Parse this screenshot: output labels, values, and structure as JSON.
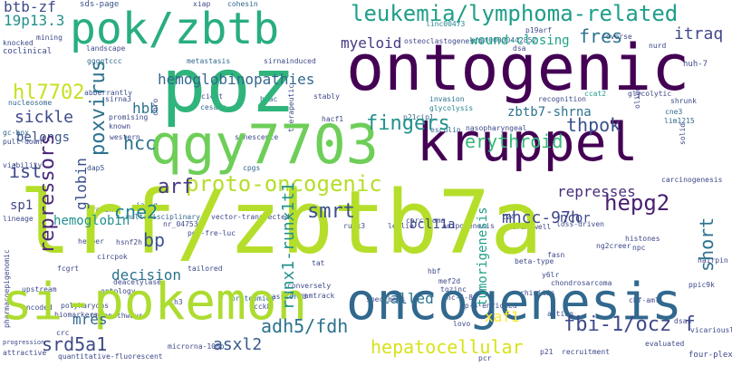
{
  "cloud": {
    "words": [
      {
        "text": "lrf/zbtb7a",
        "color": "#b5de2b",
        "s": 1
      },
      {
        "text": "poz",
        "color": "#2fb47c",
        "s": 1
      },
      {
        "text": "ontogenic",
        "color": "#440154",
        "s": 1
      },
      {
        "text": "kruppel",
        "color": "#440154",
        "s": 1
      },
      {
        "text": "qgy7703",
        "color": "#6ece58",
        "s": 1
      },
      {
        "text": "si-pokemon",
        "color": "#addc30",
        "s": 1
      },
      {
        "text": "oncogenesis",
        "color": "#31688e",
        "s": 1
      },
      {
        "text": "pok/zbtb",
        "color": "#28ae80",
        "s": 1
      },
      {
        "text": "leukemia/lymphoma-related",
        "color": "#1f9e89",
        "s": 1
      },
      {
        "text": "proto-oncogenic",
        "color": "#b5de2b",
        "s": 1
      },
      {
        "text": "hepg2",
        "color": "#481f70",
        "s": 1
      },
      {
        "text": "fingers",
        "color": "#21918c",
        "s": 1
      },
      {
        "text": "erythroid",
        "color": "#35b779",
        "s": 1
      },
      {
        "text": "smrt",
        "color": "#3b528b",
        "s": 1
      },
      {
        "text": "cne2",
        "color": "#26828e",
        "s": 1
      },
      {
        "text": "hl7702",
        "color": "#c8e020",
        "s": 1
      },
      {
        "text": "arf",
        "color": "#443983",
        "s": 1
      },
      {
        "text": "hemoglobinopathies",
        "color": "#31688e",
        "s": 1
      },
      {
        "text": "adh5/fdh",
        "color": "#2c728e",
        "s": 1
      },
      {
        "text": "fbi-1/ocz f",
        "color": "#3e4989",
        "s": 1
      },
      {
        "text": "hepatocellular",
        "color": "#d8e219",
        "s": 1
      },
      {
        "text": "srd5a1",
        "color": "#3e4989",
        "s": 1
      },
      {
        "text": "asxl2",
        "color": "#38598c",
        "s": 1
      },
      {
        "text": "mhcc-97h",
        "color": "#3e4989",
        "s": 1
      },
      {
        "text": "represses",
        "color": "#472d7b",
        "s": 1
      },
      {
        "text": "thpok",
        "color": "#3b528b",
        "s": 1
      },
      {
        "text": "fres",
        "color": "#2c728e",
        "s": 1
      },
      {
        "text": "myeloid",
        "color": "#443983",
        "s": 1
      },
      {
        "text": "itraq",
        "color": "#3e4989",
        "s": 1
      },
      {
        "text": "hcc",
        "color": "#2c728e",
        "s": 1
      },
      {
        "text": "poxvirus",
        "color": "#2c728e",
        "s": 1
      },
      {
        "text": "sickle",
        "color": "#3e4989",
        "s": 1
      },
      {
        "text": "repressors",
        "color": "#482878",
        "s": 1
      },
      {
        "text": "bp",
        "color": "#3b528b",
        "s": 1
      },
      {
        "text": "ist",
        "color": "#3e4989",
        "s": 1
      },
      {
        "text": "hemoglobin",
        "color": "#21918c",
        "s": 1
      },
      {
        "text": "decision",
        "color": "#2c728e",
        "s": 1
      },
      {
        "text": "mres",
        "color": "#31688e",
        "s": 1
      },
      {
        "text": "xaf1",
        "color": "#fde725",
        "s": 1
      },
      {
        "text": "called",
        "color": "#2c728e",
        "s": 1
      },
      {
        "text": "tumorigenesis",
        "color": "#1f9e89",
        "s": 1
      },
      {
        "text": "short",
        "color": "#2c728e",
        "s": 1
      },
      {
        "text": "ncor",
        "color": "#3e4989",
        "s": 1
      },
      {
        "text": "bcl11a",
        "color": "#3e4989",
        "s": 1
      },
      {
        "text": "runx1-runx1t1",
        "color": "#21918c",
        "s": 1
      },
      {
        "text": "btb-zf",
        "color": "#3e4989",
        "s": 1
      },
      {
        "text": "19p13.3",
        "color": "#21918c",
        "s": 1
      },
      {
        "text": "zbtb7-shrna",
        "color": "#2c728e",
        "s": 1
      },
      {
        "text": "wound-closing",
        "color": "#1fa187",
        "s": 1
      },
      {
        "text": "belongs",
        "color": "#3b528b",
        "s": 1
      },
      {
        "text": "globin",
        "color": "#3b528b",
        "s": 1
      },
      {
        "text": "sp1",
        "color": "#3e4989",
        "s": 1
      },
      {
        "text": "hbb",
        "color": "#2c728e",
        "s": 1
      }
    ],
    "small_words": [
      "sds-page",
      "xiap",
      "cohesin",
      "linc00473",
      "mining",
      "knocked",
      "coclinical",
      "landscape",
      "ggggtccc",
      "metastasis",
      "sirnainduced",
      "enst00000442852",
      "p19arf",
      "reverse",
      "dsa",
      "osteoclastogenesis",
      "nurd",
      "oligo",
      "shrunk",
      "huh-7",
      "glycolytic",
      "ccat2",
      "cne3",
      "lim1215",
      "solid",
      "carcinogenesis",
      "nucleosome",
      "abberrantly",
      "sirna3",
      "chro",
      "cicat",
      "cesare",
      "hdac",
      "therapeutic",
      "stably",
      "hacf1",
      "invasion",
      "glycolysis",
      "p21cip1",
      "esculin",
      "nasopharyngeal",
      "recognition",
      "gc-box",
      "pull-down",
      "viability",
      "promising",
      "known",
      "western",
      "senescence",
      "dap5",
      "cpgs",
      "vector-transfected",
      "multidisciplinary",
      "nr_047538",
      "pg5-fre-luc",
      "lineage",
      "jalsg",
      "hsnf2h",
      "circpok",
      "fcgrt",
      "helper",
      "prazak",
      "conversely",
      "tailored",
      "deacetylase",
      "ontology",
      "proteomics",
      "tramtrack",
      "specimens",
      "polykaryons",
      "biomarkers",
      "oncopathways",
      "crc",
      "microrna-106b",
      "recruitment",
      "attractive",
      "quantitative-fluorescent",
      "progression",
      "pharmacoepigenomic",
      "upstream",
      "encoded",
      "carcinoma",
      "runx3",
      "leslie",
      "adipogenesis",
      "transwell",
      "loss-driven",
      "histones",
      "ng2creer",
      "npc",
      "fasn",
      "beta-type",
      "chondrosarcoma",
      "rhinitis",
      "cbf-aml",
      "evaluated",
      "four-plex",
      "pcr",
      "p21",
      "lovo",
      "ap-4-enriched",
      "tozinc",
      "masstered",
      "cck8",
      "t24",
      "tat",
      "hbf",
      "mef2d",
      "nc-5-8f",
      "y6lr",
      "acting",
      "dsas",
      "h3",
      "vicariously",
      "hairpin",
      "ppic9k"
    ]
  }
}
